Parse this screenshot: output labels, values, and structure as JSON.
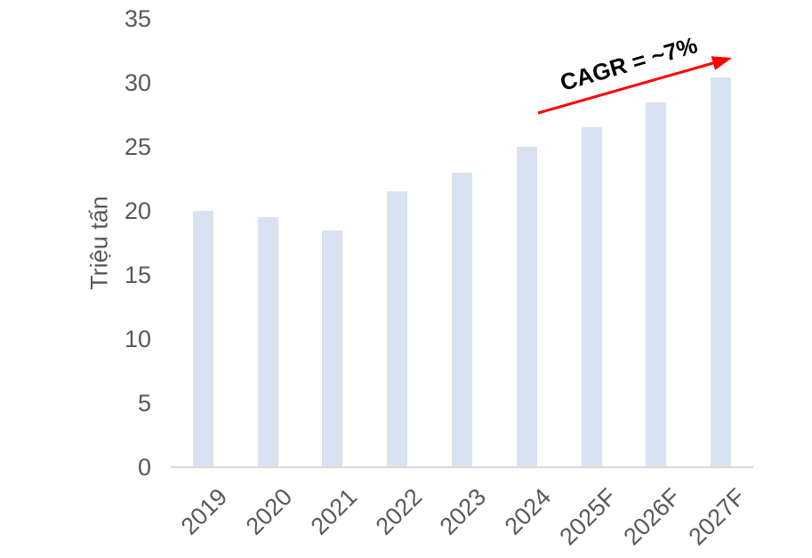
{
  "chart_data": {
    "type": "bar",
    "title": "",
    "categories": [
      "2019",
      "2020",
      "2021",
      "2022",
      "2023",
      "2024",
      "2025F",
      "2026F",
      "2027F"
    ],
    "values": [
      20,
      19.5,
      18.5,
      21.5,
      23,
      25,
      26.5,
      28.5,
      30.4
    ],
    "xlabel": "",
    "ylabel": "Triệu tấn",
    "ylim": [
      0,
      35
    ],
    "yticks": [
      0,
      5,
      10,
      15,
      20,
      25,
      30,
      35
    ],
    "grid": false,
    "legend": "none",
    "bar_color": "#D9E2F3",
    "axis_line_color": "#D9D9D9",
    "tick_label_color": "#595959",
    "annotation": {
      "text": "CAGR = ~7%",
      "text_color": "#000000",
      "arrow_color": "#FF0000"
    }
  }
}
